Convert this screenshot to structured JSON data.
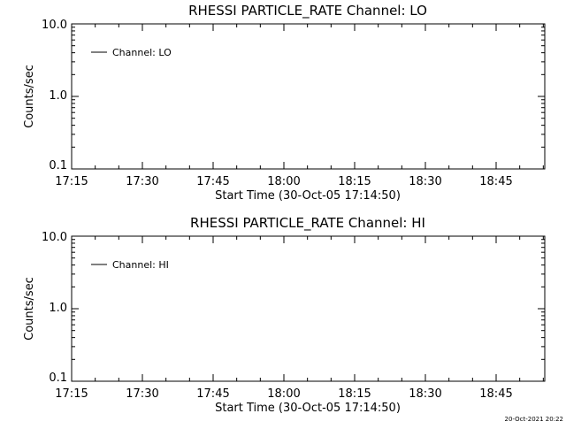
{
  "footer": {
    "timestamp": "20-Oct-2021 20:22"
  },
  "chart_data": [
    {
      "type": "line",
      "title": "RHESSI PARTICLE_RATE Channel: LO",
      "xlabel": "Start Time (30-Oct-05 17:14:50)",
      "ylabel": "Counts/sec",
      "x_tick_labels": [
        "17:15",
        "17:30",
        "17:45",
        "18:00",
        "18:15",
        "18:30",
        "18:45"
      ],
      "y_tick_labels": [
        "0.1",
        "1.0",
        "10.0"
      ],
      "y_tick_values": [
        0.1,
        1.0,
        10.0
      ],
      "ylim": [
        0.1,
        10.0
      ],
      "yscale": "log",
      "grid": false,
      "legend_position": "top-left",
      "series": [
        {
          "name": "Channel: LO",
          "x": [],
          "values": []
        }
      ]
    },
    {
      "type": "line",
      "title": "RHESSI PARTICLE_RATE Channel: HI",
      "xlabel": "Start Time (30-Oct-05 17:14:50)",
      "ylabel": "Counts/sec",
      "x_tick_labels": [
        "17:15",
        "17:30",
        "17:45",
        "18:00",
        "18:15",
        "18:30",
        "18:45"
      ],
      "y_tick_labels": [
        "0.1",
        "1.0",
        "10.0"
      ],
      "y_tick_values": [
        0.1,
        1.0,
        10.0
      ],
      "ylim": [
        0.1,
        10.0
      ],
      "yscale": "log",
      "grid": false,
      "legend_position": "top-left",
      "series": [
        {
          "name": "Channel: HI",
          "x": [],
          "values": []
        }
      ]
    }
  ]
}
